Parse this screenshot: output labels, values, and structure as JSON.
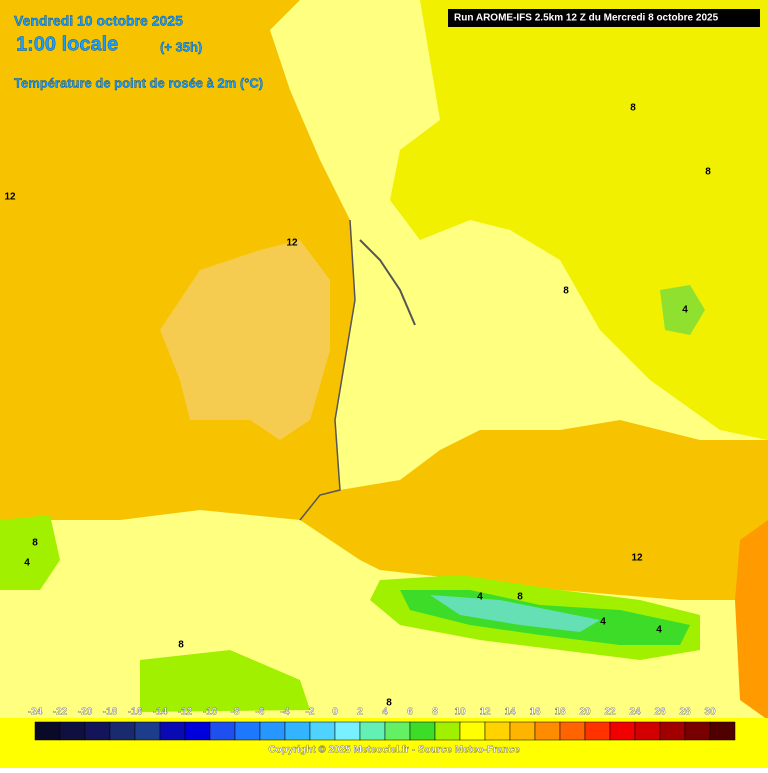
{
  "header": {
    "date": "Vendredi 10 octobre 2025",
    "time": "1:00 locale",
    "lead": "(+ 35h)",
    "field": "Température de point de rosée à 2m (°C)",
    "run": "Run AROME-IFS 2.5km 12 Z du Mercredi 8 octobre 2025"
  },
  "contour_labels": [
    "12",
    "12",
    "8",
    "8",
    "8",
    "4",
    "12",
    "8",
    "4",
    "4",
    "8",
    "4",
    "4",
    "8",
    "8"
  ],
  "legend": {
    "ticks": [
      -24,
      -22,
      -20,
      -18,
      -16,
      -14,
      -12,
      -10,
      -8,
      -6,
      -4,
      -2,
      0,
      2,
      4,
      6,
      8,
      10,
      12,
      14,
      16,
      18,
      20,
      22,
      24,
      26,
      28,
      30
    ],
    "colors": [
      "#0a0a28",
      "#101040",
      "#14145a",
      "#1a2a6e",
      "#1e3c8c",
      "#0a0ab4",
      "#0000dc",
      "#1e50f0",
      "#1e78ff",
      "#2896ff",
      "#32b4ff",
      "#50d2ff",
      "#78f0ff",
      "#64f0b4",
      "#64f064",
      "#3cdc28",
      "#a0f000",
      "#ffff00",
      "#ffd200",
      "#ffb400",
      "#ff8c00",
      "#ff6400",
      "#ff3200",
      "#f00000",
      "#d20000",
      "#a00000",
      "#780000",
      "#500000"
    ]
  },
  "copyright": "Copyright © 2025 Meteociel.fr - Source Meteo-France"
}
